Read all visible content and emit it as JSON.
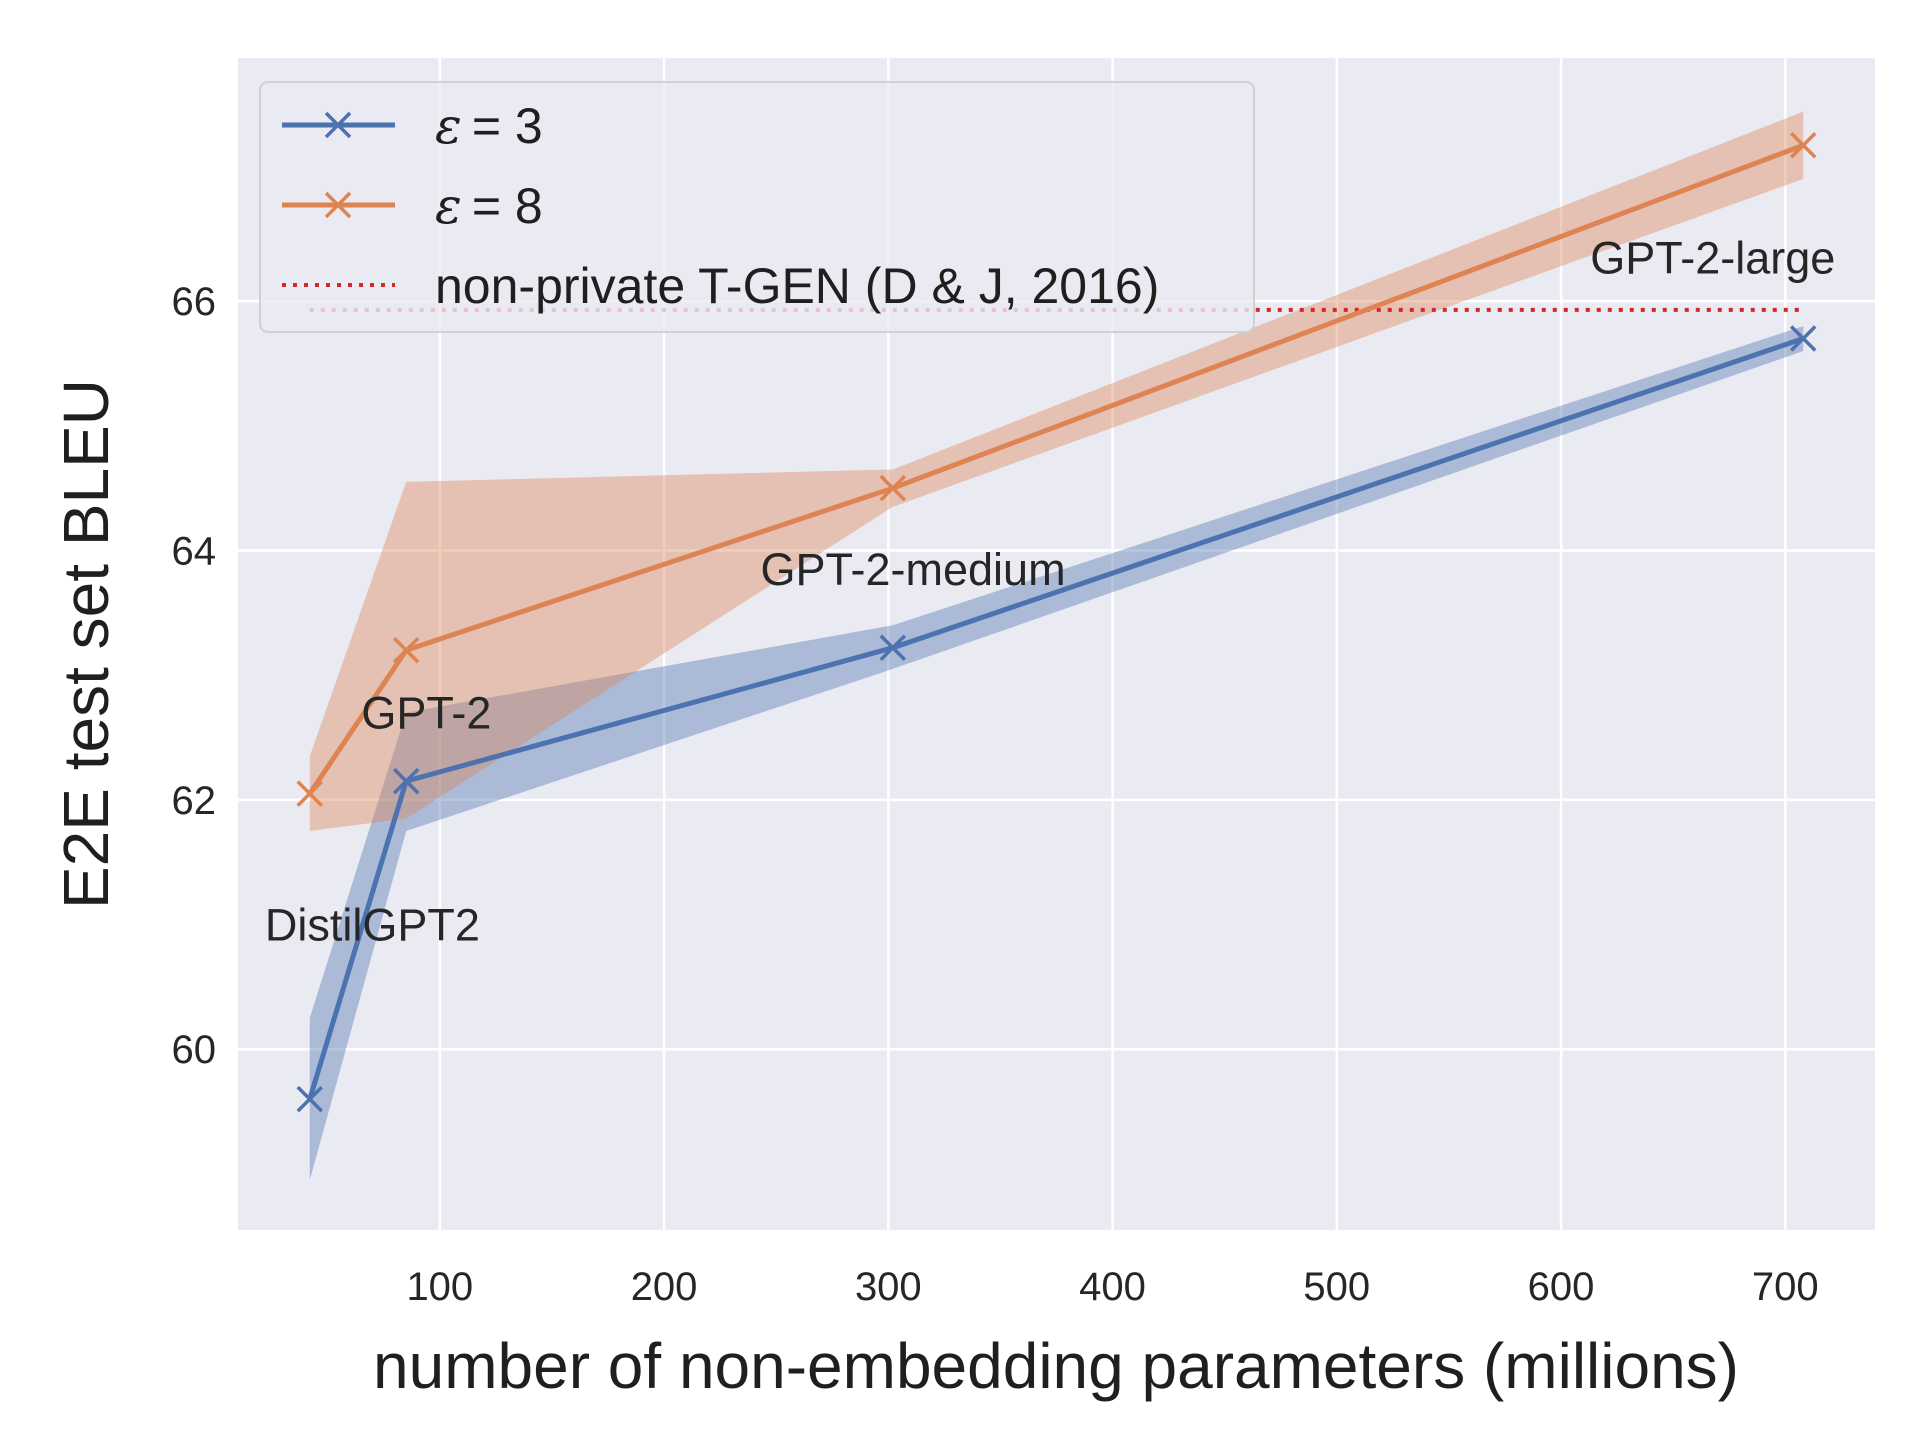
{
  "chart_data": {
    "type": "line",
    "xlabel": "number of non-embedding parameters (millions)",
    "ylabel": "E2E test set BLEU",
    "xlim": [
      10,
      740
    ],
    "ylim": [
      58.55,
      67.95
    ],
    "xticks": [
      100,
      200,
      300,
      400,
      500,
      600,
      700
    ],
    "yticks": [
      60,
      62,
      64,
      66
    ],
    "grid": true,
    "legend_position": "top-left",
    "series": [
      {
        "name": "ε = 3",
        "legend_symbol": "ε",
        "legend_value": "= 3",
        "color": "#4c72b0",
        "marker": "x",
        "x": [
          42,
          85,
          302,
          708
        ],
        "y": [
          59.6,
          62.15,
          63.22,
          65.7
        ],
        "lower": [
          58.95,
          61.75,
          63.05,
          65.6
        ],
        "upper": [
          60.25,
          62.7,
          63.4,
          65.8
        ]
      },
      {
        "name": "ε = 8",
        "legend_symbol": "ε",
        "legend_value": "= 8",
        "color": "#dd8452",
        "marker": "x",
        "x": [
          42,
          85,
          302,
          708
        ],
        "y": [
          62.05,
          63.2,
          64.5,
          67.25
        ],
        "lower": [
          61.75,
          61.85,
          64.35,
          66.98
        ],
        "upper": [
          62.35,
          64.55,
          64.65,
          67.52
        ]
      }
    ],
    "reference_line": {
      "name": "non-private T-GEN (D & J, 2016)",
      "y": 65.93,
      "x_range": [
        42,
        708
      ],
      "color": "#d62728",
      "style": "dotted"
    },
    "annotations": [
      {
        "text": "DistilGPT2",
        "x": 22,
        "y": 61.0
      },
      {
        "text": "GPT-2",
        "x": 65,
        "y": 62.7
      },
      {
        "text": "GPT-2-medium",
        "x": 243,
        "y": 63.85
      },
      {
        "text": "GPT-2-large",
        "x": 613,
        "y": 66.35
      }
    ]
  },
  "colors": {
    "plot_background": "#eaeaf2",
    "grid": "#ffffff"
  }
}
